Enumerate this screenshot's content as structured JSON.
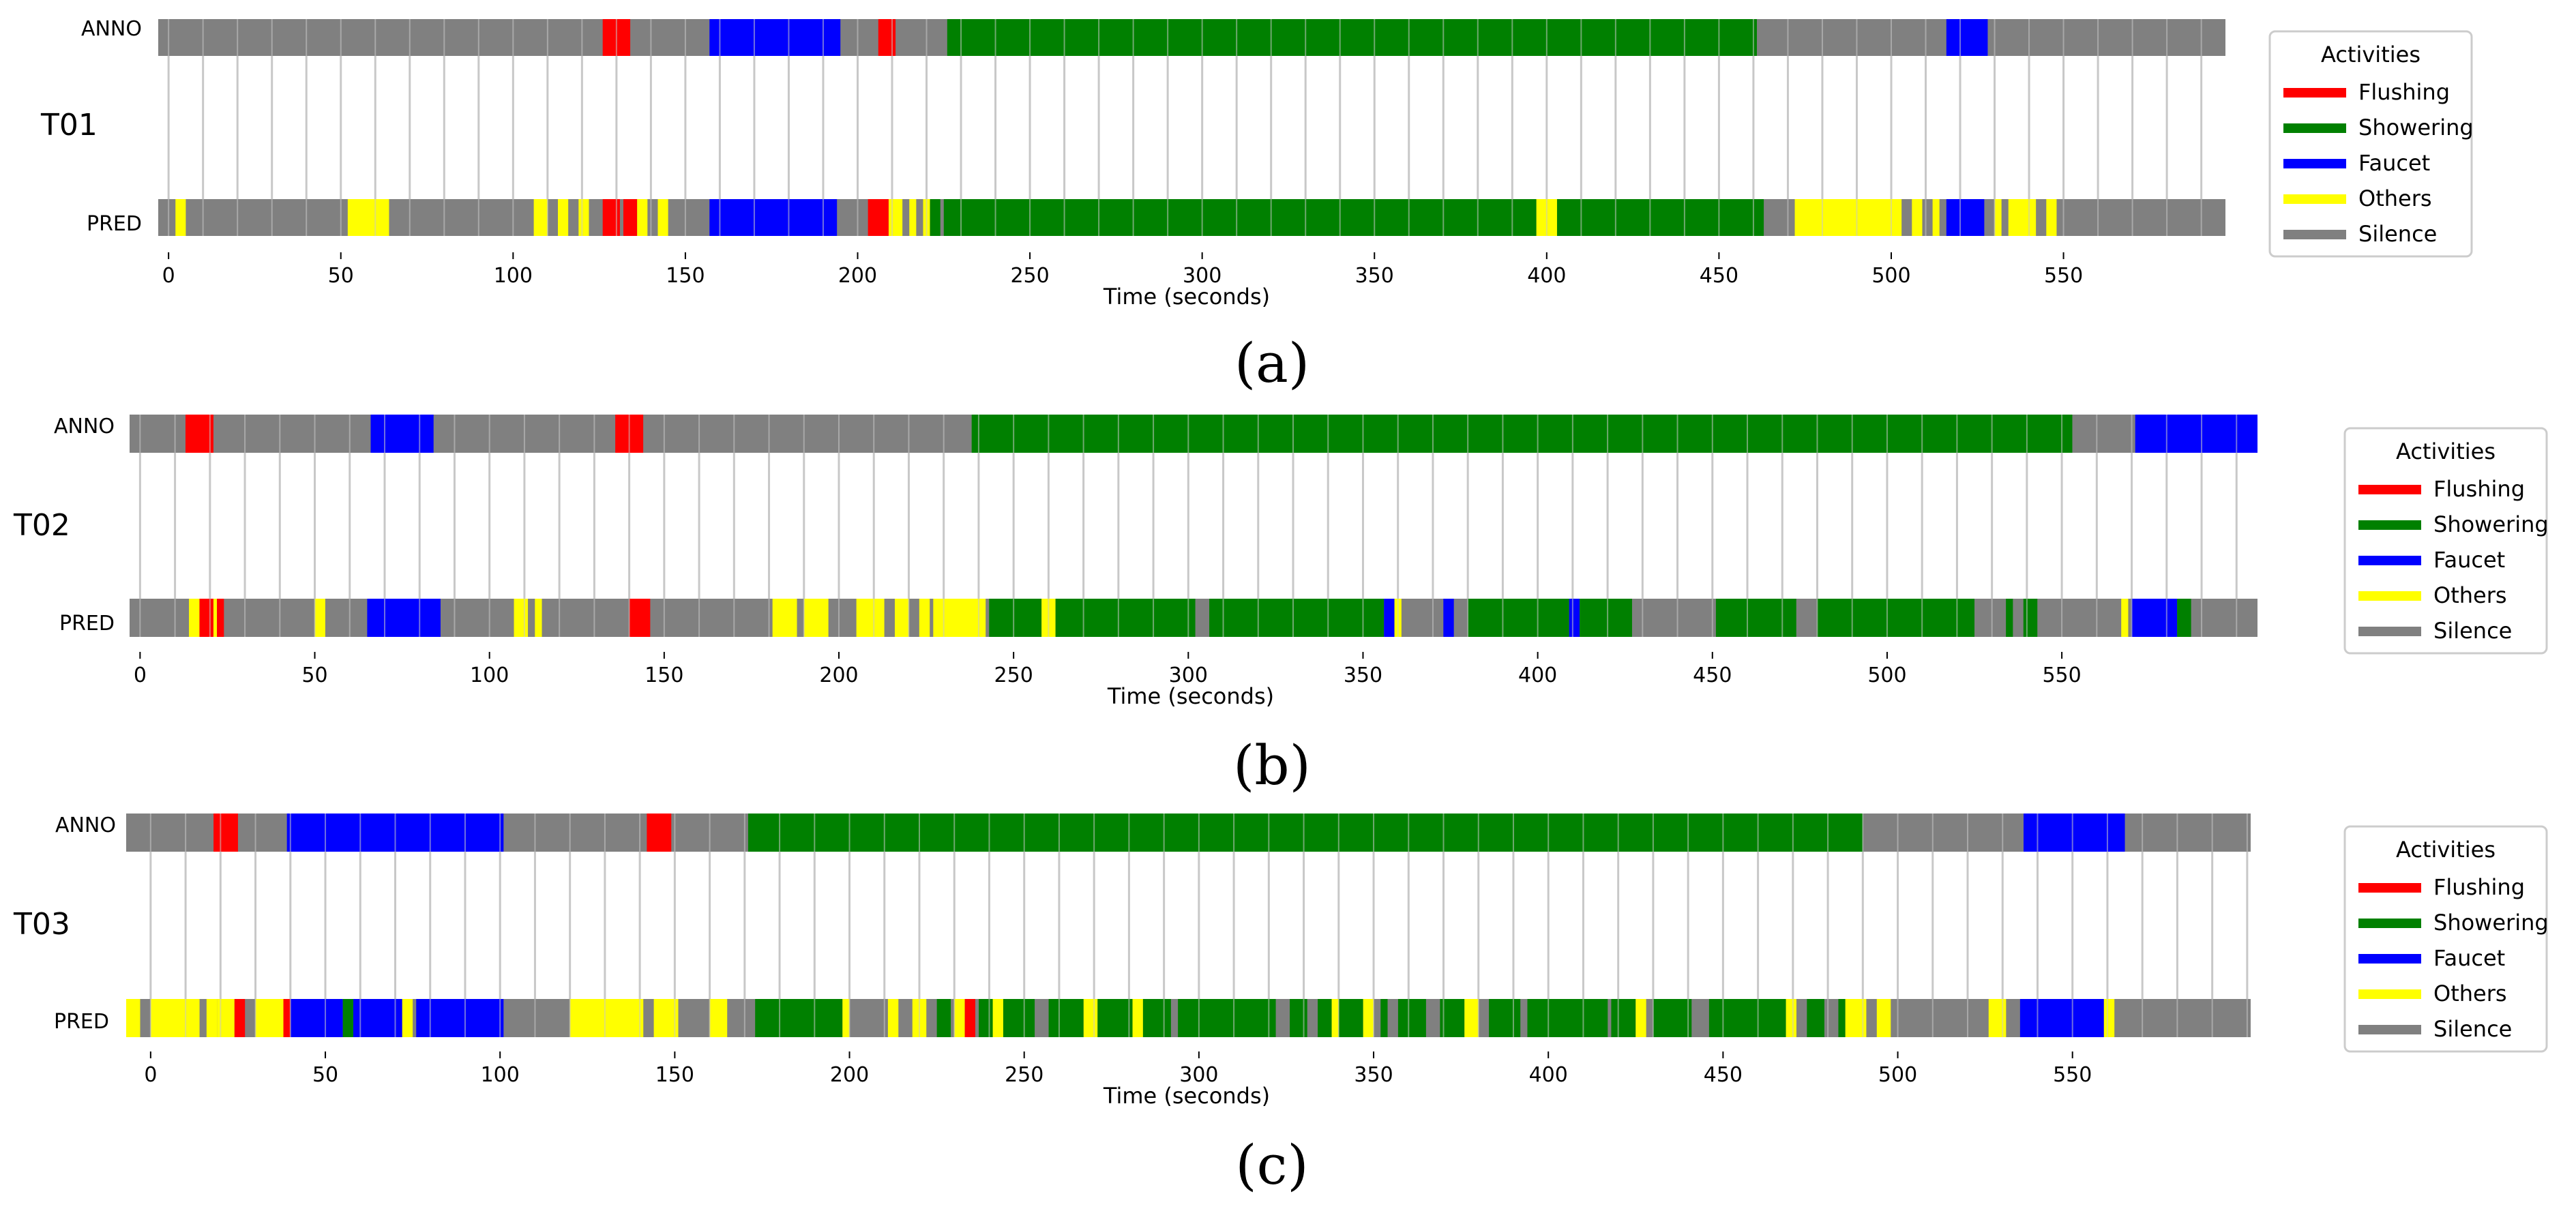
{
  "legend_title": "Activities",
  "legend_items": [
    {
      "label": "Flushing",
      "color": "#ff0000"
    },
    {
      "label": "Showering",
      "color": "#008000"
    },
    {
      "label": "Faucet",
      "color": "#0000ff"
    },
    {
      "label": "Others",
      "color": "#ffff00"
    },
    {
      "label": "Silence",
      "color": "#808080"
    }
  ],
  "chart_data": [
    {
      "type": "timeline",
      "panel": "(a)",
      "trial": "T01",
      "xlabel": "Time (seconds)",
      "xlim": [
        -3,
        597
      ],
      "xticks": [
        0,
        50,
        100,
        150,
        200,
        250,
        300,
        350,
        400,
        450,
        500,
        550
      ],
      "background_color": "#808080",
      "rows": [
        {
          "label": "ANNO",
          "segments": [
            {
              "activity": "Flushing",
              "start": 126,
              "end": 134
            },
            {
              "activity": "Faucet",
              "start": 157,
              "end": 195
            },
            {
              "activity": "Flushing",
              "start": 206,
              "end": 211
            },
            {
              "activity": "Showering",
              "start": 226,
              "end": 461
            },
            {
              "activity": "Faucet",
              "start": 516,
              "end": 528
            }
          ]
        },
        {
          "label": "PRED",
          "segments": [
            {
              "activity": "Others",
              "start": 2,
              "end": 5
            },
            {
              "activity": "Others",
              "start": 52,
              "end": 64
            },
            {
              "activity": "Others",
              "start": 106,
              "end": 110
            },
            {
              "activity": "Others",
              "start": 113,
              "end": 116
            },
            {
              "activity": "Others",
              "start": 119,
              "end": 122
            },
            {
              "activity": "Flushing",
              "start": 126,
              "end": 131
            },
            {
              "activity": "Flushing",
              "start": 132,
              "end": 136
            },
            {
              "activity": "Others",
              "start": 136,
              "end": 139
            },
            {
              "activity": "Others",
              "start": 142,
              "end": 145
            },
            {
              "activity": "Faucet",
              "start": 157,
              "end": 194
            },
            {
              "activity": "Flushing",
              "start": 203,
              "end": 209
            },
            {
              "activity": "Others",
              "start": 209,
              "end": 213
            },
            {
              "activity": "Others",
              "start": 215,
              "end": 217
            },
            {
              "activity": "Others",
              "start": 219,
              "end": 221
            },
            {
              "activity": "Showering",
              "start": 221,
              "end": 224
            },
            {
              "activity": "Showering",
              "start": 225,
              "end": 397
            },
            {
              "activity": "Others",
              "start": 397,
              "end": 403
            },
            {
              "activity": "Showering",
              "start": 403,
              "end": 463
            },
            {
              "activity": "Others",
              "start": 472,
              "end": 503
            },
            {
              "activity": "Others",
              "start": 506,
              "end": 509
            },
            {
              "activity": "Others",
              "start": 512,
              "end": 514
            },
            {
              "activity": "Faucet",
              "start": 516,
              "end": 527
            },
            {
              "activity": "Others",
              "start": 530,
              "end": 532
            },
            {
              "activity": "Others",
              "start": 534,
              "end": 542
            },
            {
              "activity": "Others",
              "start": 545,
              "end": 548
            }
          ]
        }
      ]
    },
    {
      "type": "timeline",
      "panel": "(b)",
      "trial": "T02",
      "xlabel": "Time (seconds)",
      "xlim": [
        -3,
        606
      ],
      "xticks": [
        0,
        50,
        100,
        150,
        200,
        250,
        300,
        350,
        400,
        450,
        500,
        550
      ],
      "background_color": "#808080",
      "rows": [
        {
          "label": "ANNO",
          "segments": [
            {
              "activity": "Flushing",
              "start": 13,
              "end": 21
            },
            {
              "activity": "Faucet",
              "start": 66,
              "end": 84
            },
            {
              "activity": "Flushing",
              "start": 136,
              "end": 144
            },
            {
              "activity": "Showering",
              "start": 238,
              "end": 553
            },
            {
              "activity": "Faucet",
              "start": 571,
              "end": 606
            }
          ]
        },
        {
          "label": "PRED",
          "segments": [
            {
              "activity": "Others",
              "start": 14,
              "end": 17
            },
            {
              "activity": "Flushing",
              "start": 17,
              "end": 21
            },
            {
              "activity": "Others",
              "start": 21,
              "end": 22
            },
            {
              "activity": "Flushing",
              "start": 22,
              "end": 24
            },
            {
              "activity": "Others",
              "start": 50,
              "end": 53
            },
            {
              "activity": "Faucet",
              "start": 65,
              "end": 86
            },
            {
              "activity": "Others",
              "start": 107,
              "end": 111
            },
            {
              "activity": "Others",
              "start": 113,
              "end": 115
            },
            {
              "activity": "Flushing",
              "start": 140,
              "end": 146
            },
            {
              "activity": "Others",
              "start": 181,
              "end": 188
            },
            {
              "activity": "Others",
              "start": 190,
              "end": 197
            },
            {
              "activity": "Others",
              "start": 205,
              "end": 213
            },
            {
              "activity": "Others",
              "start": 216,
              "end": 220
            },
            {
              "activity": "Others",
              "start": 223,
              "end": 226
            },
            {
              "activity": "Others",
              "start": 227,
              "end": 242
            },
            {
              "activity": "Showering",
              "start": 243,
              "end": 258
            },
            {
              "activity": "Others",
              "start": 258,
              "end": 262
            },
            {
              "activity": "Showering",
              "start": 262,
              "end": 302
            },
            {
              "activity": "Showering",
              "start": 306,
              "end": 356
            },
            {
              "activity": "Faucet",
              "start": 356,
              "end": 359
            },
            {
              "activity": "Others",
              "start": 359,
              "end": 361
            },
            {
              "activity": "Faucet",
              "start": 373,
              "end": 376
            },
            {
              "activity": "Showering",
              "start": 380,
              "end": 409
            },
            {
              "activity": "Faucet",
              "start": 409,
              "end": 412
            },
            {
              "activity": "Showering",
              "start": 412,
              "end": 427
            },
            {
              "activity": "Showering",
              "start": 451,
              "end": 474
            },
            {
              "activity": "Showering",
              "start": 480,
              "end": 525
            },
            {
              "activity": "Showering",
              "start": 534,
              "end": 536
            },
            {
              "activity": "Showering",
              "start": 539,
              "end": 543
            },
            {
              "activity": "Others",
              "start": 567,
              "end": 569
            },
            {
              "activity": "Faucet",
              "start": 570,
              "end": 583
            },
            {
              "activity": "Showering",
              "start": 583,
              "end": 587
            }
          ]
        }
      ]
    },
    {
      "type": "timeline",
      "panel": "(c)",
      "trial": "T03",
      "xlabel": "Time (seconds)",
      "xlim": [
        -7,
        601
      ],
      "xticks": [
        0,
        50,
        100,
        150,
        200,
        250,
        300,
        350,
        400,
        450,
        500,
        550
      ],
      "background_color": "#808080",
      "rows": [
        {
          "label": "ANNO",
          "segments": [
            {
              "activity": "Flushing",
              "start": 18,
              "end": 25
            },
            {
              "activity": "Faucet",
              "start": 39,
              "end": 101
            },
            {
              "activity": "Flushing",
              "start": 142,
              "end": 149
            },
            {
              "activity": "Showering",
              "start": 171,
              "end": 490
            },
            {
              "activity": "Faucet",
              "start": 536,
              "end": 565
            }
          ]
        },
        {
          "label": "PRED",
          "segments": [
            {
              "activity": "Others",
              "start": -7,
              "end": -3
            },
            {
              "activity": "Others",
              "start": 0,
              "end": 14
            },
            {
              "activity": "Others",
              "start": 16,
              "end": 19
            },
            {
              "activity": "Others",
              "start": 19,
              "end": 24
            },
            {
              "activity": "Flushing",
              "start": 24,
              "end": 27
            },
            {
              "activity": "Others",
              "start": 30,
              "end": 38
            },
            {
              "activity": "Flushing",
              "start": 38,
              "end": 40
            },
            {
              "activity": "Faucet",
              "start": 40,
              "end": 55
            },
            {
              "activity": "Showering",
              "start": 55,
              "end": 58
            },
            {
              "activity": "Faucet",
              "start": 58,
              "end": 72
            },
            {
              "activity": "Others",
              "start": 72,
              "end": 75
            },
            {
              "activity": "Faucet",
              "start": 76,
              "end": 101
            },
            {
              "activity": "Others",
              "start": 120,
              "end": 141
            },
            {
              "activity": "Others",
              "start": 144,
              "end": 151
            },
            {
              "activity": "Others",
              "start": 160,
              "end": 165
            },
            {
              "activity": "Showering",
              "start": 173,
              "end": 198
            },
            {
              "activity": "Others",
              "start": 198,
              "end": 200
            },
            {
              "activity": "Others",
              "start": 211,
              "end": 214
            },
            {
              "activity": "Others",
              "start": 218,
              "end": 222
            },
            {
              "activity": "Showering",
              "start": 225,
              "end": 229
            },
            {
              "activity": "Others",
              "start": 230,
              "end": 233
            },
            {
              "activity": "Flushing",
              "start": 233,
              "end": 236
            },
            {
              "activity": "Showering",
              "start": 237,
              "end": 243
            },
            {
              "activity": "Others",
              "start": 241,
              "end": 244
            },
            {
              "activity": "Showering",
              "start": 244,
              "end": 253
            },
            {
              "activity": "Showering",
              "start": 257,
              "end": 267
            },
            {
              "activity": "Others",
              "start": 267,
              "end": 271
            },
            {
              "activity": "Showering",
              "start": 271,
              "end": 281
            },
            {
              "activity": "Others",
              "start": 281,
              "end": 284
            },
            {
              "activity": "Showering",
              "start": 284,
              "end": 292
            },
            {
              "activity": "Showering",
              "start": 294,
              "end": 322
            },
            {
              "activity": "Showering",
              "start": 326,
              "end": 331
            },
            {
              "activity": "Showering",
              "start": 334,
              "end": 338
            },
            {
              "activity": "Others",
              "start": 338,
              "end": 340
            },
            {
              "activity": "Showering",
              "start": 340,
              "end": 347
            },
            {
              "activity": "Others",
              "start": 347,
              "end": 350
            },
            {
              "activity": "Showering",
              "start": 352,
              "end": 354
            },
            {
              "activity": "Showering",
              "start": 357,
              "end": 365
            },
            {
              "activity": "Showering",
              "start": 369,
              "end": 376
            },
            {
              "activity": "Others",
              "start": 376,
              "end": 380
            },
            {
              "activity": "Showering",
              "start": 383,
              "end": 392
            },
            {
              "activity": "Showering",
              "start": 394,
              "end": 417
            },
            {
              "activity": "Showering",
              "start": 418,
              "end": 425
            },
            {
              "activity": "Others",
              "start": 425,
              "end": 428
            },
            {
              "activity": "Showering",
              "start": 430,
              "end": 441
            },
            {
              "activity": "Showering",
              "start": 446,
              "end": 468
            },
            {
              "activity": "Others",
              "start": 468,
              "end": 471
            },
            {
              "activity": "Showering",
              "start": 474,
              "end": 479
            },
            {
              "activity": "Showering",
              "start": 483,
              "end": 485
            },
            {
              "activity": "Others",
              "start": 485,
              "end": 491
            },
            {
              "activity": "Others",
              "start": 494,
              "end": 498
            },
            {
              "activity": "Others",
              "start": 526,
              "end": 531
            },
            {
              "activity": "Faucet",
              "start": 535,
              "end": 559
            },
            {
              "activity": "Others",
              "start": 559,
              "end": 562
            }
          ]
        }
      ]
    }
  ],
  "captions": [
    "(a)",
    "(b)",
    "(c)"
  ]
}
